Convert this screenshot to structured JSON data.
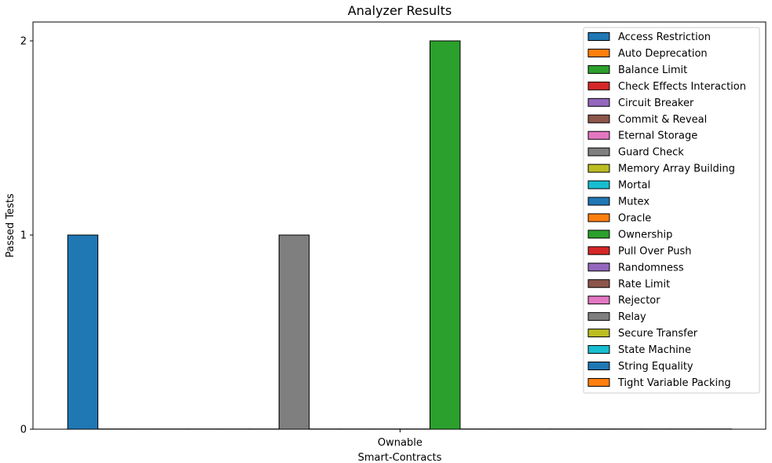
{
  "chart_data": {
    "type": "bar",
    "title": "Analyzer Results",
    "xlabel": "Smart-Contracts",
    "ylabel": "Passed Tests",
    "categories": [
      "Ownable"
    ],
    "yticks": [
      0,
      1,
      2
    ],
    "ylim": [
      0,
      2.1
    ],
    "grid": false,
    "legend_position": "top-right",
    "series": [
      {
        "name": "Access Restriction",
        "color": "#1f77b4",
        "values": [
          1
        ]
      },
      {
        "name": "Auto Deprecation",
        "color": "#ff7f0e",
        "values": [
          0
        ]
      },
      {
        "name": "Balance Limit",
        "color": "#2ca02c",
        "values": [
          0
        ]
      },
      {
        "name": "Check Effects Interaction",
        "color": "#d62728",
        "values": [
          0
        ]
      },
      {
        "name": "Circuit Breaker",
        "color": "#9467bd",
        "values": [
          0
        ]
      },
      {
        "name": "Commit & Reveal",
        "color": "#8c564b",
        "values": [
          0
        ]
      },
      {
        "name": "Eternal Storage",
        "color": "#e377c2",
        "values": [
          0
        ]
      },
      {
        "name": "Guard Check",
        "color": "#7f7f7f",
        "values": [
          1
        ]
      },
      {
        "name": "Memory Array Building",
        "color": "#bcbd22",
        "values": [
          0
        ]
      },
      {
        "name": "Mortal",
        "color": "#17becf",
        "values": [
          0
        ]
      },
      {
        "name": "Mutex",
        "color": "#1f77b4",
        "values": [
          0
        ]
      },
      {
        "name": "Oracle",
        "color": "#ff7f0e",
        "values": [
          0
        ]
      },
      {
        "name": "Ownership",
        "color": "#2ca02c",
        "values": [
          2
        ]
      },
      {
        "name": "Pull Over Push",
        "color": "#d62728",
        "values": [
          0
        ]
      },
      {
        "name": "Randomness",
        "color": "#9467bd",
        "values": [
          0
        ]
      },
      {
        "name": "Rate Limit",
        "color": "#8c564b",
        "values": [
          0
        ]
      },
      {
        "name": "Rejector",
        "color": "#e377c2",
        "values": [
          0
        ]
      },
      {
        "name": "Relay",
        "color": "#7f7f7f",
        "values": [
          0
        ]
      },
      {
        "name": "Secure Transfer",
        "color": "#bcbd22",
        "values": [
          0
        ]
      },
      {
        "name": "State Machine",
        "color": "#17becf",
        "values": [
          0
        ]
      },
      {
        "name": "String Equality",
        "color": "#1f77b4",
        "values": [
          0
        ]
      },
      {
        "name": "Tight Variable Packing",
        "color": "#ff7f0e",
        "values": [
          0
        ]
      }
    ]
  }
}
